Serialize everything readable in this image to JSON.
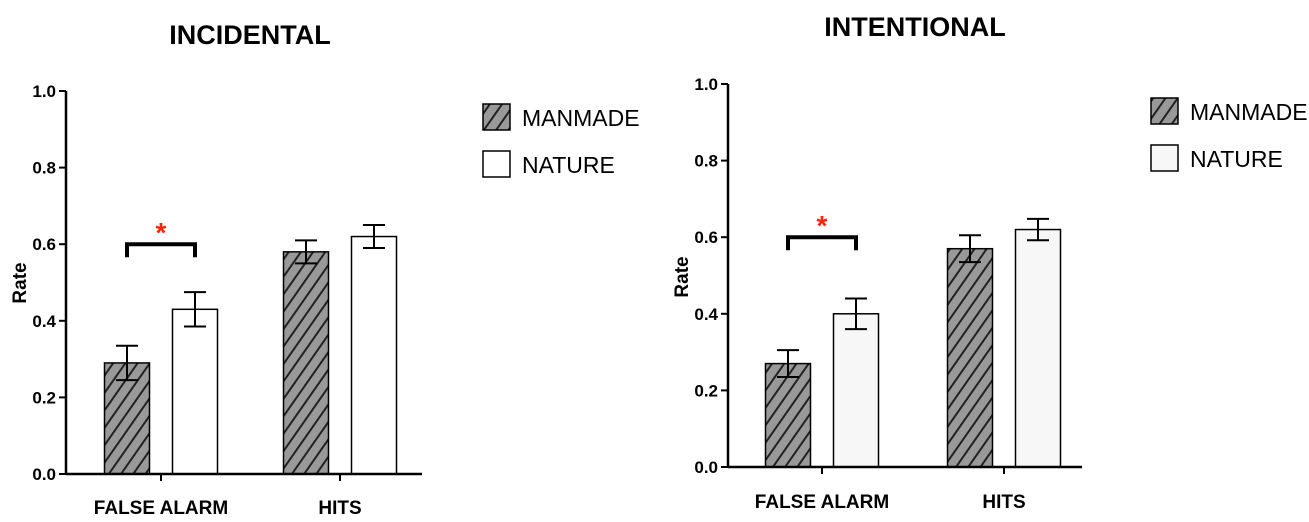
{
  "colors": {
    "hatch_fill": "#999999",
    "hatch_line": "#222222",
    "nature_fill": "#ffffff",
    "nature_fill_right": "#f7f7f7",
    "axis": "#000000",
    "significance": "#ff2200"
  },
  "chart_data": [
    {
      "type": "bar",
      "title": "INCIDENTAL",
      "ylabel": "Rate",
      "xlabel": "",
      "ylim": [
        0,
        1.0
      ],
      "yticks": [
        "0.0",
        "0.2",
        "0.4",
        "0.6",
        "0.8",
        "1.0"
      ],
      "grid": false,
      "legend_position": "right",
      "categories": [
        "FALSE ALARM",
        "HITS"
      ],
      "series": [
        {
          "name": "MANMADE",
          "values": [
            0.29,
            0.58
          ],
          "errors": [
            0.045,
            0.03
          ],
          "style": "hatched"
        },
        {
          "name": "NATURE",
          "values": [
            0.43,
            0.62
          ],
          "errors": [
            0.045,
            0.03
          ],
          "style": "open"
        }
      ],
      "significance": {
        "category": "FALSE ALARM",
        "y": 0.6,
        "label": "*"
      }
    },
    {
      "type": "bar",
      "title": "INTENTIONAL",
      "ylabel": "Rate",
      "xlabel": "",
      "ylim": [
        0,
        1.0
      ],
      "yticks": [
        "0.0",
        "0.2",
        "0.4",
        "0.6",
        "0.8",
        "1.0"
      ],
      "grid": false,
      "legend_position": "right",
      "categories": [
        "FALSE ALARM",
        "HITS"
      ],
      "series": [
        {
          "name": "MANMADE",
          "values": [
            0.27,
            0.57
          ],
          "errors": [
            0.035,
            0.035
          ],
          "style": "hatched"
        },
        {
          "name": "NATURE",
          "values": [
            0.4,
            0.62
          ],
          "errors": [
            0.04,
            0.028
          ],
          "style": "open"
        }
      ],
      "significance": {
        "category": "FALSE ALARM",
        "y": 0.6,
        "label": "*"
      }
    }
  ]
}
